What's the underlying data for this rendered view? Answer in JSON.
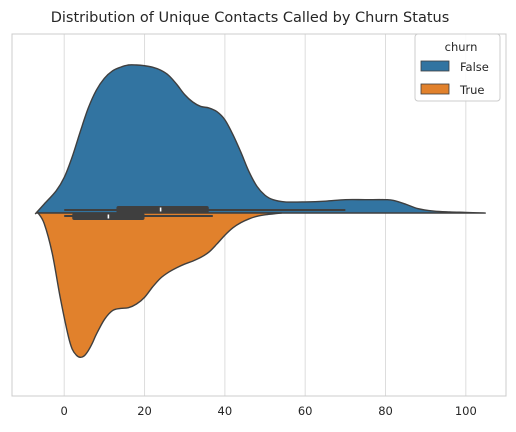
{
  "chart_data": {
    "type": "violin",
    "title": "Distribution of Unique Contacts Called by Churn Status",
    "xlabel": "",
    "ylabel": "",
    "xlim": [
      -13,
      110
    ],
    "xticks": [
      0,
      20,
      40,
      60,
      80,
      100
    ],
    "grid": "vertical",
    "legend": {
      "title": "churn",
      "placement": "top-right",
      "entries": [
        "False",
        "True"
      ]
    },
    "series": [
      {
        "name": "False",
        "color": "#3274a1",
        "side": "upper",
        "density": [
          [
            -7,
            0.0
          ],
          [
            -5,
            0.06
          ],
          [
            -2,
            0.15
          ],
          [
            0,
            0.24
          ],
          [
            2,
            0.38
          ],
          [
            4,
            0.55
          ],
          [
            6,
            0.71
          ],
          [
            8,
            0.83
          ],
          [
            10,
            0.91
          ],
          [
            12,
            0.96
          ],
          [
            14,
            0.985
          ],
          [
            16,
            1.0
          ],
          [
            18,
            1.0
          ],
          [
            20,
            0.995
          ],
          [
            22,
            0.985
          ],
          [
            24,
            0.965
          ],
          [
            26,
            0.93
          ],
          [
            28,
            0.87
          ],
          [
            30,
            0.8
          ],
          [
            32,
            0.75
          ],
          [
            34,
            0.72
          ],
          [
            36,
            0.71
          ],
          [
            38,
            0.685
          ],
          [
            40,
            0.63
          ],
          [
            42,
            0.53
          ],
          [
            44,
            0.41
          ],
          [
            46,
            0.28
          ],
          [
            48,
            0.18
          ],
          [
            50,
            0.12
          ],
          [
            52,
            0.09
          ],
          [
            55,
            0.075
          ],
          [
            60,
            0.075
          ],
          [
            65,
            0.08
          ],
          [
            70,
            0.09
          ],
          [
            75,
            0.09
          ],
          [
            80,
            0.09
          ],
          [
            82,
            0.085
          ],
          [
            85,
            0.06
          ],
          [
            88,
            0.03
          ],
          [
            92,
            0.013
          ],
          [
            96,
            0.007
          ],
          [
            100,
            0.004
          ],
          [
            104.5,
            0.0
          ]
        ],
        "box": {
          "q1": 13,
          "median": 24,
          "q3": 36,
          "whisker_low": 0,
          "whisker_high": 70
        }
      },
      {
        "name": "True",
        "color": "#e1812c",
        "side": "lower",
        "density": [
          [
            -6.5,
            0.0
          ],
          [
            -5,
            0.07
          ],
          [
            -3,
            0.27
          ],
          [
            -1,
            0.57
          ],
          [
            1,
            0.83
          ],
          [
            2,
            0.92
          ],
          [
            3,
            0.96
          ],
          [
            4,
            0.975
          ],
          [
            5,
            0.965
          ],
          [
            6,
            0.93
          ],
          [
            7,
            0.88
          ],
          [
            8,
            0.82
          ],
          [
            10,
            0.72
          ],
          [
            12,
            0.66
          ],
          [
            14,
            0.645
          ],
          [
            16,
            0.64
          ],
          [
            18,
            0.615
          ],
          [
            20,
            0.57
          ],
          [
            22,
            0.5
          ],
          [
            24,
            0.44
          ],
          [
            26,
            0.4
          ],
          [
            28,
            0.37
          ],
          [
            30,
            0.345
          ],
          [
            32,
            0.325
          ],
          [
            34,
            0.3
          ],
          [
            36,
            0.265
          ],
          [
            38,
            0.21
          ],
          [
            40,
            0.15
          ],
          [
            42,
            0.1
          ],
          [
            44,
            0.065
          ],
          [
            46,
            0.04
          ],
          [
            48,
            0.022
          ],
          [
            50,
            0.012
          ],
          [
            52,
            0.006
          ],
          [
            54,
            0.0
          ]
        ],
        "box": {
          "q1": 2,
          "median": 11,
          "q3": 20,
          "whisker_low": 0,
          "whisker_high": 37
        }
      }
    ]
  }
}
